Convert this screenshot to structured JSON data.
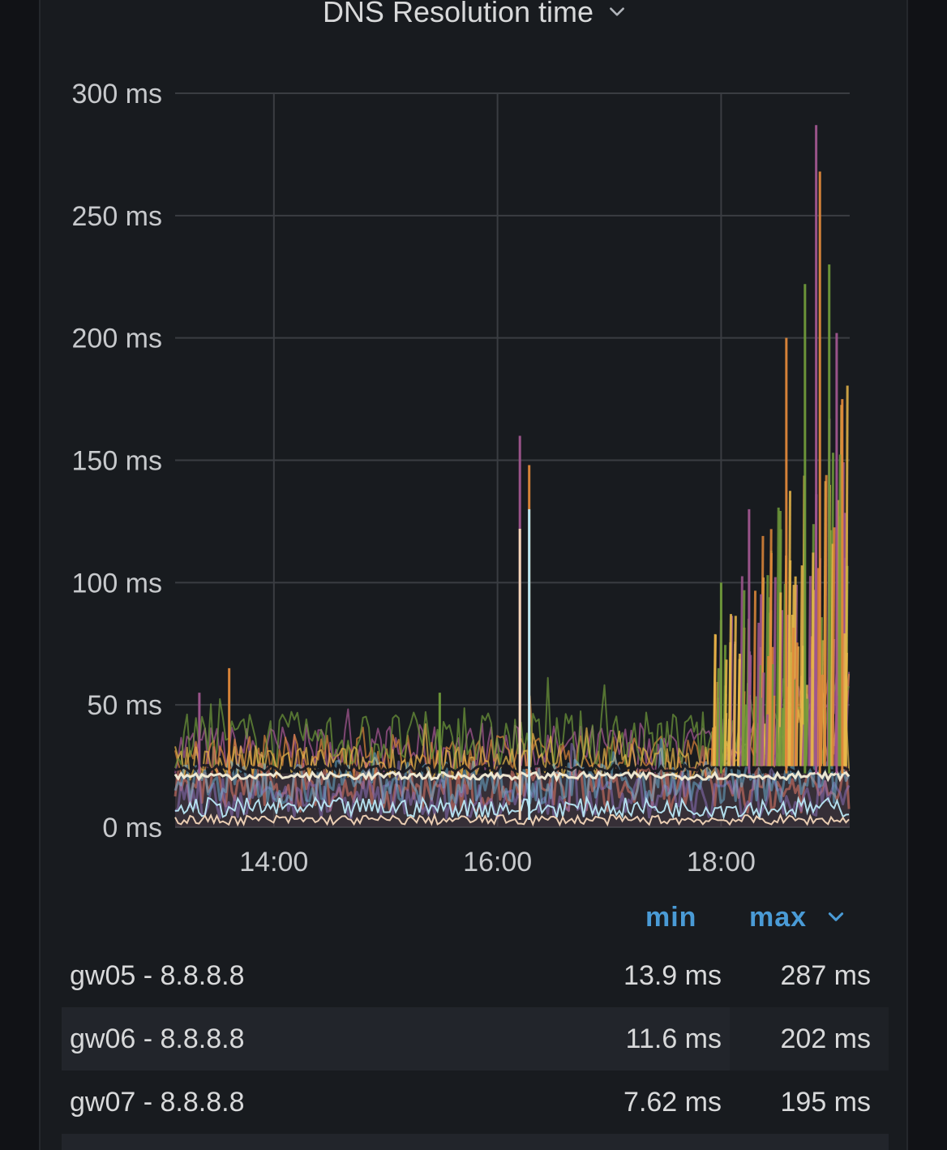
{
  "panel": {
    "title": "DNS Resolution time"
  },
  "legend": {
    "header_min": "min",
    "header_max": "max",
    "rows": [
      {
        "name": "gw05 - 8.8.8.8",
        "min": "13.9 ms",
        "max": "287 ms"
      },
      {
        "name": "gw06 - 8.8.8.8",
        "min": "11.6 ms",
        "max": "202 ms"
      },
      {
        "name": "gw07 - 8.8.8.8",
        "min": "7.62 ms",
        "max": "195 ms"
      }
    ]
  },
  "chart_data": {
    "type": "line",
    "title": "DNS Resolution time",
    "xlabel": "",
    "ylabel": "",
    "x_ticks": [
      "14:00",
      "16:00",
      "18:00"
    ],
    "y_ticks": [
      "0 ms",
      "50 ms",
      "100 ms",
      "150 ms",
      "200 ms",
      "250 ms",
      "300 ms"
    ],
    "ylim": [
      0,
      300
    ],
    "xlim": [
      "13:07",
      "19:09"
    ],
    "grid": true,
    "legend_placement": "bottom",
    "series_colors": [
      "#a0568f",
      "#e0883a",
      "#6f9a3a",
      "#e8b84a",
      "#e47a6a",
      "#8a6fb8",
      "#6db6d9",
      "#c45f9b",
      "#4fa06e",
      "#f4d6b8",
      "#b9e8f5",
      "#f0efe0"
    ],
    "series": [
      {
        "name": "gw05 - 8.8.8.8",
        "summary": {
          "min": 13.9,
          "max": 287
        }
      },
      {
        "name": "gw06 - 8.8.8.8",
        "summary": {
          "min": 11.6,
          "max": 202
        }
      },
      {
        "name": "gw07 - 8.8.8.8",
        "summary": {
          "min": 7.62,
          "max": 195
        }
      }
    ],
    "spikes": [
      {
        "x": "13:20",
        "y": 55
      },
      {
        "x": "13:36",
        "y": 65
      },
      {
        "x": "15:29",
        "y": 55
      },
      {
        "x": "16:12",
        "y": 160
      },
      {
        "x": "16:17",
        "y": 148
      },
      {
        "x": "18:00",
        "y": 100
      },
      {
        "x": "18:15",
        "y": 130
      },
      {
        "x": "18:35",
        "y": 200
      },
      {
        "x": "18:45",
        "y": 222
      },
      {
        "x": "18:51",
        "y": 287
      },
      {
        "x": "18:53",
        "y": 268
      },
      {
        "x": "18:58",
        "y": 230
      },
      {
        "x": "19:02",
        "y": 202
      },
      {
        "x": "19:05",
        "y": 175
      }
    ]
  }
}
